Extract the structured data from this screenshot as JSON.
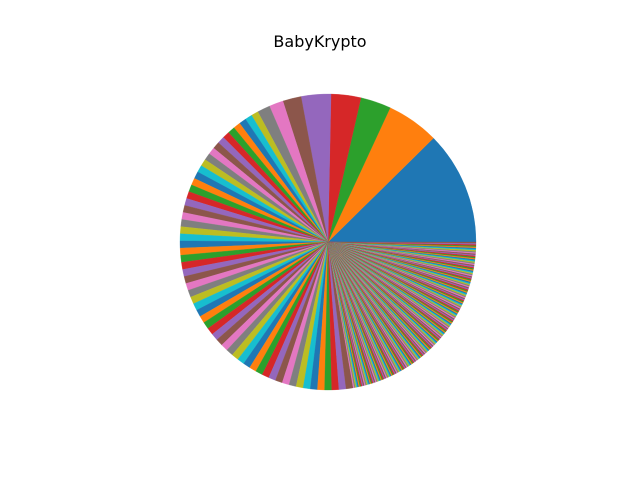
{
  "chart_data": {
    "type": "pie",
    "title": "BabyKrypto",
    "start_angle_deg": 0,
    "direction": "counterclockwise",
    "palette": [
      "#1f77b4",
      "#ff7f0e",
      "#2ca02c",
      "#d62728",
      "#9467bd",
      "#8c564b",
      "#e377c2",
      "#7f7f7f",
      "#bcbd22",
      "#17becf"
    ],
    "major_slices": [
      16.0,
      7.4,
      4.3,
      4.2,
      4.2,
      2.6,
      2.0,
      1.8
    ],
    "minor_slice_count": 58,
    "minor_slice_value": 1.0,
    "tail_slice_count": 180,
    "tail_slice_value": 0.16
  }
}
